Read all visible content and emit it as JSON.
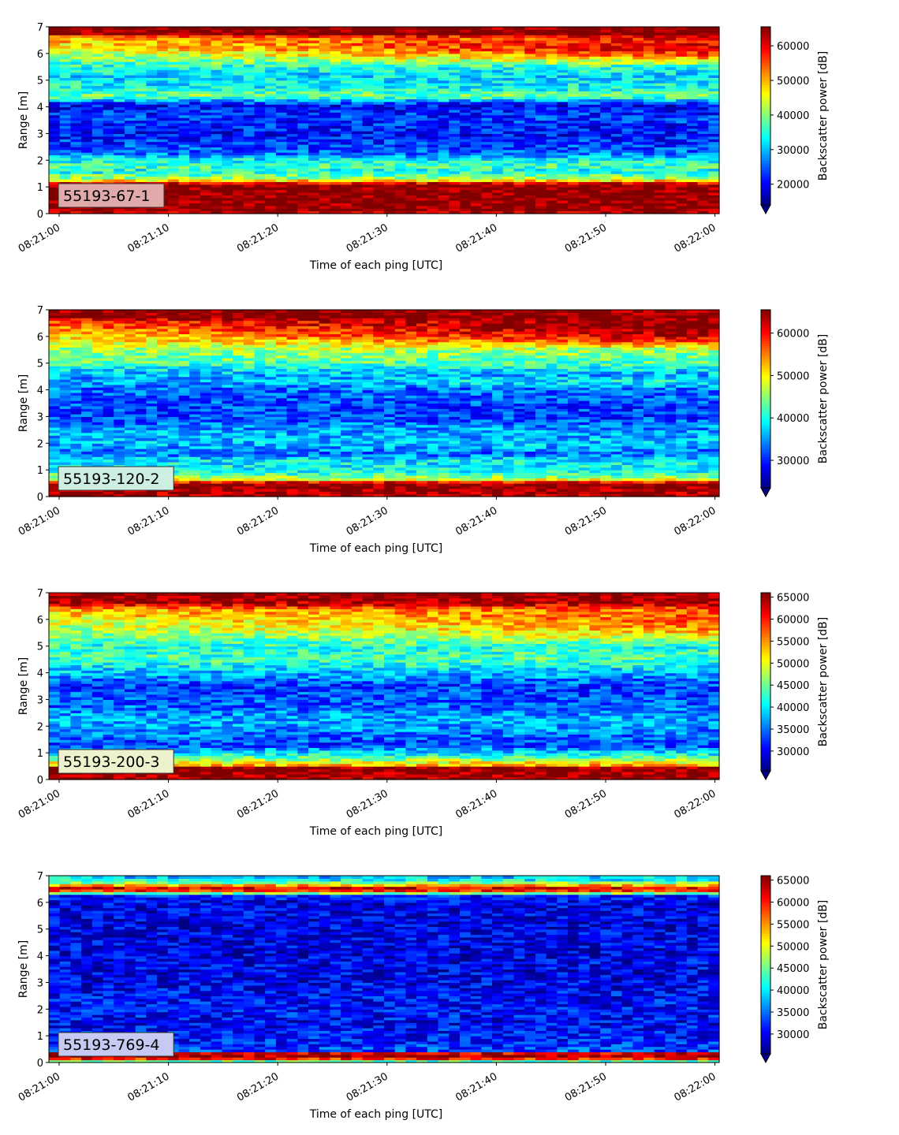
{
  "chart_data": [
    {
      "type": "heatmap",
      "panel_label": "55193-67-1",
      "panel_label_bg": "#e0aaaa",
      "xlabel": "Time of each ping [UTC]",
      "ylabel": "Range [m]",
      "xticks": [
        "08:21:00",
        "08:21:10",
        "08:21:20",
        "08:21:30",
        "08:21:40",
        "08:21:50",
        "08:22:00"
      ],
      "yticks": [
        0,
        1,
        2,
        3,
        4,
        5,
        6,
        7
      ],
      "ylim": [
        0,
        7
      ],
      "colorbar": {
        "label": "Backscatter power [dB]",
        "ticks": [
          20000,
          30000,
          40000,
          50000,
          60000
        ],
        "range": [
          14000,
          65500
        ],
        "extend": "min",
        "colormap": "jet"
      },
      "profile": [
        [
          0.0,
          0.92
        ],
        [
          0.15,
          1.0
        ],
        [
          1.1,
          1.0
        ],
        [
          1.3,
          0.55
        ],
        [
          1.6,
          0.38
        ],
        [
          1.8,
          0.45
        ],
        [
          2.0,
          0.38
        ],
        [
          2.3,
          0.22
        ],
        [
          3.0,
          0.13
        ],
        [
          3.6,
          0.18
        ],
        [
          4.1,
          0.12
        ],
        [
          4.4,
          0.5
        ],
        [
          4.7,
          0.38
        ],
        [
          5.2,
          0.34
        ],
        [
          5.7,
          0.44
        ],
        [
          6.2,
          0.62
        ],
        [
          6.6,
          0.7
        ],
        [
          6.75,
          1.0
        ],
        [
          7.0,
          1.0
        ]
      ],
      "trend": [
        [
          5.5,
          6.8,
          0.3
        ]
      ]
    },
    {
      "type": "heatmap",
      "panel_label": "55193-120-2",
      "panel_label_bg": "#cdeee0",
      "xlabel": "Time of each ping [UTC]",
      "ylabel": "Range [m]",
      "xticks": [
        "08:21:00",
        "08:21:10",
        "08:21:20",
        "08:21:30",
        "08:21:40",
        "08:21:50",
        "08:22:00"
      ],
      "yticks": [
        0,
        1,
        2,
        3,
        4,
        5,
        6,
        7
      ],
      "ylim": [
        0,
        7
      ],
      "colorbar": {
        "label": "Backscatter power [dB]",
        "ticks": [
          30000,
          40000,
          50000,
          60000
        ],
        "range": [
          23500,
          65500
        ],
        "extend": "min",
        "colormap": "jet"
      },
      "profile": [
        [
          0.0,
          0.95
        ],
        [
          0.5,
          1.0
        ],
        [
          0.65,
          0.6
        ],
        [
          0.9,
          0.4
        ],
        [
          1.4,
          0.35
        ],
        [
          1.6,
          0.22
        ],
        [
          2.0,
          0.32
        ],
        [
          2.5,
          0.28
        ],
        [
          3.0,
          0.18
        ],
        [
          3.6,
          0.2
        ],
        [
          4.2,
          0.25
        ],
        [
          4.6,
          0.3
        ],
        [
          5.0,
          0.45
        ],
        [
          5.6,
          0.55
        ],
        [
          6.2,
          0.7
        ],
        [
          6.6,
          0.85
        ],
        [
          6.75,
          1.0
        ],
        [
          7.0,
          1.0
        ]
      ],
      "trend": [
        [
          5.5,
          6.8,
          0.3
        ],
        [
          4.1,
          4.5,
          0.12
        ]
      ]
    },
    {
      "type": "heatmap",
      "panel_label": "55193-200-3",
      "panel_label_bg": "#eef2cc",
      "xlabel": "Time of each ping [UTC]",
      "ylabel": "Range [m]",
      "xticks": [
        "08:21:00",
        "08:21:10",
        "08:21:20",
        "08:21:30",
        "08:21:40",
        "08:21:50",
        "08:22:00"
      ],
      "yticks": [
        0,
        1,
        2,
        3,
        4,
        5,
        6,
        7
      ],
      "ylim": [
        0,
        7
      ],
      "colorbar": {
        "label": "Backscatter power [dB]",
        "ticks": [
          30000,
          35000,
          40000,
          45000,
          50000,
          55000,
          60000,
          65000
        ],
        "range": [
          25500,
          66000
        ],
        "extend": "min",
        "colormap": "jet"
      },
      "profile": [
        [
          0.0,
          0.95
        ],
        [
          0.45,
          1.0
        ],
        [
          0.55,
          0.7
        ],
        [
          0.9,
          0.42
        ],
        [
          1.3,
          0.18
        ],
        [
          1.8,
          0.25
        ],
        [
          2.2,
          0.3
        ],
        [
          2.8,
          0.22
        ],
        [
          3.5,
          0.18
        ],
        [
          4.0,
          0.3
        ],
        [
          4.5,
          0.45
        ],
        [
          5.0,
          0.4
        ],
        [
          5.5,
          0.5
        ],
        [
          6.0,
          0.6
        ],
        [
          6.4,
          0.7
        ],
        [
          6.6,
          0.95
        ],
        [
          7.0,
          1.0
        ]
      ],
      "trend": [
        [
          5.0,
          6.6,
          0.2
        ]
      ]
    },
    {
      "type": "heatmap",
      "panel_label": "55193-769-4",
      "panel_label_bg": "#c6caf2",
      "xlabel": "Time of each ping [UTC]",
      "ylabel": "Range [m]",
      "xticks": [
        "08:21:00",
        "08:21:10",
        "08:21:20",
        "08:21:30",
        "08:21:40",
        "08:21:50",
        "08:22:00"
      ],
      "yticks": [
        0,
        1,
        2,
        3,
        4,
        5,
        6,
        7
      ],
      "ylim": [
        0,
        7
      ],
      "colorbar": {
        "label": "Backscatter power [dB]",
        "ticks": [
          30000,
          35000,
          40000,
          45000,
          50000,
          55000,
          60000,
          65000
        ],
        "range": [
          25500,
          66000
        ],
        "extend": "min",
        "colormap": "jet"
      },
      "profile": [
        [
          0.0,
          0.2
        ],
        [
          0.1,
          0.7
        ],
        [
          0.2,
          1.0
        ],
        [
          0.35,
          0.9
        ],
        [
          0.45,
          0.2
        ],
        [
          0.8,
          0.15
        ],
        [
          1.5,
          0.12
        ],
        [
          2.0,
          0.14
        ],
        [
          3.0,
          0.11
        ],
        [
          5.0,
          0.1
        ],
        [
          6.0,
          0.1
        ],
        [
          6.25,
          0.15
        ],
        [
          6.35,
          0.5
        ],
        [
          6.5,
          1.0
        ],
        [
          6.65,
          0.7
        ],
        [
          6.8,
          0.4
        ],
        [
          7.0,
          0.3
        ]
      ],
      "trend": []
    }
  ]
}
